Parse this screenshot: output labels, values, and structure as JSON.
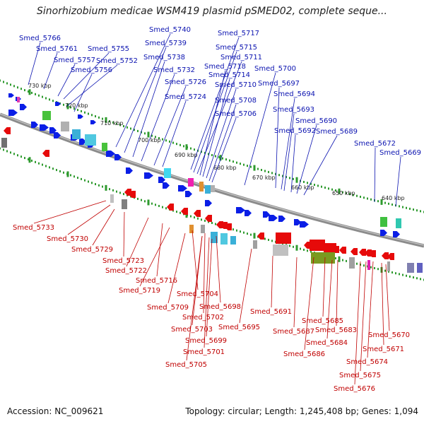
{
  "title": "Sinorhizobium medicae WSM419 plasmid pSMED02, complete seque...",
  "footer": {
    "accession": "Accession: NC_009621",
    "summary": "Topology: circular; Length: 1,245,408 bp; Genes: 1,094"
  },
  "colors": {
    "forward_strand": "#0a1ee6",
    "reverse_strand": "#e60a0a",
    "backbone": "#8c8c8c",
    "tick": "#2e9a2e",
    "label_forward": "#0b13b0",
    "label_reverse": "#c00000"
  },
  "scale_labels": [
    "730 kbp",
    "720 kbp",
    "710 kbp",
    "700 kbp",
    "690 kbp",
    "680 kbp",
    "670 kbp",
    "660 kbp",
    "650 kbp",
    "640 kbp"
  ],
  "forward_labels": [
    "Smed_5766",
    "Smed_5761",
    "Smed_5757",
    "Smed_5755",
    "Smed_5752",
    "Smed_5756",
    "Smed_5740",
    "Smed_5739",
    "Smed_5738",
    "Smed_5732",
    "Smed_5726",
    "Smed_5724",
    "Smed_5717",
    "Smed_5715",
    "Smed_5711",
    "Smed_5718",
    "Smed_5714",
    "Smed_5710",
    "Smed_5708",
    "Smed_5706",
    "Smed_5700",
    "Smed_5697",
    "Smed_5694",
    "Smed_5693",
    "Smed_5690",
    "Smed_5692",
    "Smed_5689",
    "Smed_5672",
    "Smed_5669"
  ],
  "reverse_labels": [
    "Smed_5733",
    "Smed_5730",
    "Smed_5729",
    "Smed_5723",
    "Smed_5722",
    "Smed_5716",
    "Smed_5719",
    "Smed_5704",
    "Smed_5709",
    "Smed_5698",
    "Smed_5702",
    "Smed_5703",
    "Smed_5699",
    "Smed_5701",
    "Smed_5705",
    "Smed_5691",
    "Smed_5695",
    "Smed_5685",
    "Smed_5687",
    "Smed_5683",
    "Smed_5684",
    "Smed_5686",
    "Smed_5670",
    "Smed_5671",
    "Smed_5674",
    "Smed_5675",
    "Smed_5676"
  ]
}
